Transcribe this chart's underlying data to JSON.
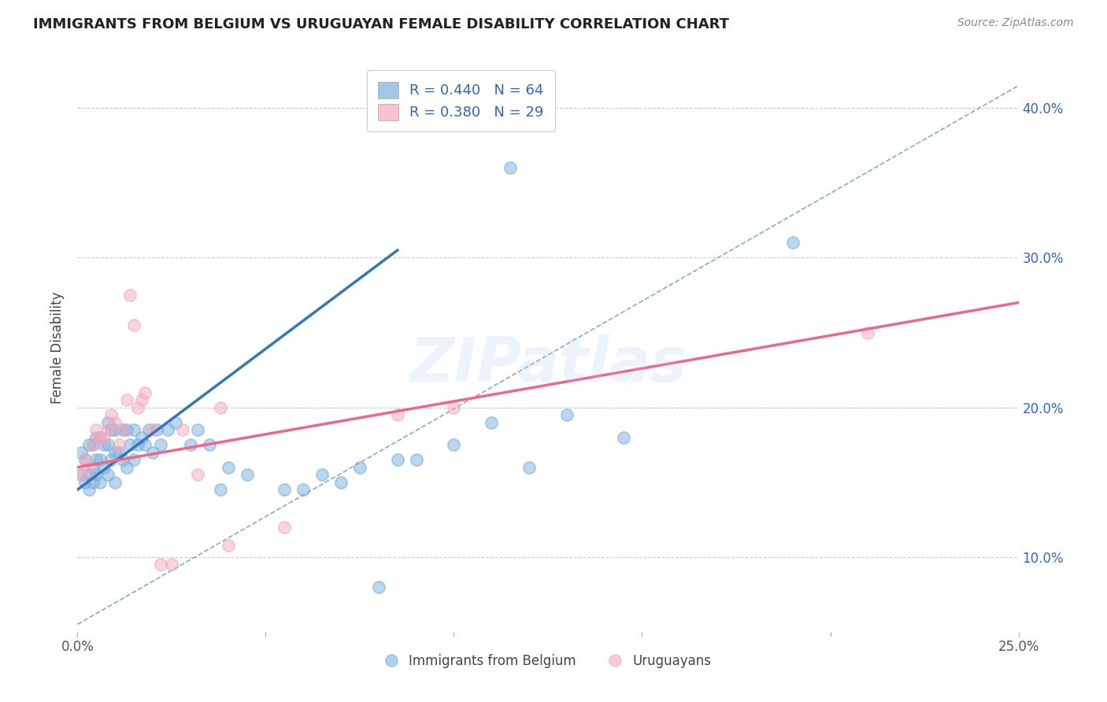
{
  "title": "IMMIGRANTS FROM BELGIUM VS URUGUAYAN FEMALE DISABILITY CORRELATION CHART",
  "source": "Source: ZipAtlas.com",
  "ylabel": "Female Disability",
  "xlim": [
    0.0,
    0.25
  ],
  "ylim": [
    0.05,
    0.43
  ],
  "x_tick_labels_show": [
    "0.0%",
    "25.0%"
  ],
  "x_ticks_show": [
    0.0,
    0.25
  ],
  "y_ticks": [
    0.1,
    0.2,
    0.3,
    0.4
  ],
  "y_tick_labels": [
    "10.0%",
    "20.0%",
    "30.0%",
    "40.0%"
  ],
  "watermark": "ZIPatlas",
  "blue_color": "#7AAFDC",
  "pink_color": "#F4AABB",
  "blue_line_color": "#3377BB",
  "pink_line_color": "#EE6688",
  "dashed_line_color": "#88AACC",
  "title_color": "#222222",
  "legend_text_color": "#3366BB",
  "blue_scatter_x": [
    0.001,
    0.001,
    0.002,
    0.002,
    0.003,
    0.003,
    0.003,
    0.004,
    0.004,
    0.004,
    0.005,
    0.005,
    0.005,
    0.006,
    0.006,
    0.006,
    0.007,
    0.007,
    0.008,
    0.008,
    0.008,
    0.009,
    0.009,
    0.01,
    0.01,
    0.01,
    0.011,
    0.012,
    0.012,
    0.013,
    0.013,
    0.014,
    0.015,
    0.015,
    0.016,
    0.017,
    0.018,
    0.019,
    0.02,
    0.021,
    0.022,
    0.024,
    0.026,
    0.03,
    0.032,
    0.035,
    0.038,
    0.04,
    0.045,
    0.055,
    0.06,
    0.065,
    0.07,
    0.075,
    0.08,
    0.085,
    0.09,
    0.1,
    0.11,
    0.115,
    0.12,
    0.13,
    0.145,
    0.19
  ],
  "blue_scatter_y": [
    0.155,
    0.17,
    0.15,
    0.165,
    0.145,
    0.155,
    0.175,
    0.15,
    0.16,
    0.175,
    0.155,
    0.165,
    0.18,
    0.15,
    0.165,
    0.18,
    0.16,
    0.175,
    0.155,
    0.175,
    0.19,
    0.165,
    0.185,
    0.15,
    0.17,
    0.185,
    0.17,
    0.165,
    0.185,
    0.16,
    0.185,
    0.175,
    0.165,
    0.185,
    0.175,
    0.18,
    0.175,
    0.185,
    0.17,
    0.185,
    0.175,
    0.185,
    0.19,
    0.175,
    0.185,
    0.175,
    0.145,
    0.16,
    0.155,
    0.145,
    0.145,
    0.155,
    0.15,
    0.16,
    0.08,
    0.165,
    0.165,
    0.175,
    0.19,
    0.36,
    0.16,
    0.195,
    0.18,
    0.31
  ],
  "pink_scatter_x": [
    0.001,
    0.002,
    0.003,
    0.004,
    0.005,
    0.006,
    0.007,
    0.008,
    0.009,
    0.01,
    0.011,
    0.012,
    0.013,
    0.014,
    0.015,
    0.016,
    0.017,
    0.018,
    0.02,
    0.022,
    0.025,
    0.028,
    0.032,
    0.038,
    0.04,
    0.055,
    0.085,
    0.1,
    0.21
  ],
  "pink_scatter_y": [
    0.155,
    0.165,
    0.16,
    0.175,
    0.185,
    0.18,
    0.18,
    0.185,
    0.195,
    0.19,
    0.175,
    0.185,
    0.205,
    0.275,
    0.255,
    0.2,
    0.205,
    0.21,
    0.185,
    0.095,
    0.095,
    0.185,
    0.155,
    0.2,
    0.108,
    0.12,
    0.195,
    0.2,
    0.25
  ],
  "blue_line_x": [
    0.0,
    0.085
  ],
  "blue_line_y": [
    0.145,
    0.305
  ],
  "pink_line_x": [
    0.0,
    0.25
  ],
  "pink_line_y": [
    0.16,
    0.27
  ],
  "dashed_line_x": [
    0.0,
    0.25
  ],
  "dashed_line_y": [
    0.055,
    0.415
  ],
  "legend_items": [
    "Immigrants from Belgium",
    "Uruguayans"
  ],
  "background_color": "#FFFFFF",
  "plot_bg_color": "#FFFFFF"
}
